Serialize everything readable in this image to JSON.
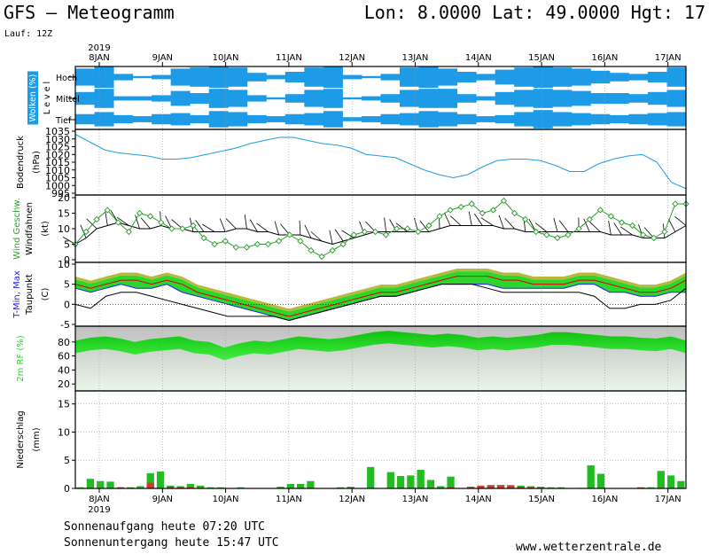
{
  "header": {
    "title": "GFS – Meteogramm",
    "location": "Lon: 8.0000 Lat: 49.0000 Hgt: 17",
    "run": "Lauf: 12Z"
  },
  "footer": {
    "sunrise": "Sonnenaufgang heute 07:20 UTC",
    "sunset": "Sonnenuntergang heute 15:47 UTC",
    "site": "www.wetterzentrale.de"
  },
  "colors": {
    "cloud": "#1e9be6",
    "pressure": "#1e9be6",
    "wind": "#2ca02c",
    "tmin": "#2020ff",
    "tmax": "#e00000",
    "rh": "#22dd22",
    "rain_green": "#22bb22",
    "rain_red": "#d23b2c"
  },
  "chart_data": {
    "type": "meteogram",
    "x_axis": {
      "year": "2019",
      "days": [
        "8JAN",
        "9JAN",
        "10JAN",
        "11JAN",
        "12JAN",
        "13JAN",
        "14JAN",
        "15JAN",
        "16JAN",
        "17JAN"
      ]
    },
    "panels": {
      "clouds": {
        "ylabel": "Wolken (%)",
        "ylabel2": "L e v e l",
        "levels": [
          "Hoch",
          "Mittel",
          "Tief"
        ],
        "coverage": {
          "hoch": [
            0.8,
            1,
            0.3,
            0.1,
            0.2,
            0.8,
            0.9,
            1,
            0.9,
            0.4,
            0.2,
            0.5,
            0.9,
            1,
            0.2,
            0.1,
            0.3,
            0.9,
            1,
            0.8,
            0.5,
            0.3,
            0.7,
            0.9,
            1,
            0.9,
            0.8,
            0.6,
            0.4,
            0.3,
            0.5,
            0.9
          ],
          "mittel": [
            0.6,
            0.9,
            0.2,
            0.2,
            0.3,
            0.7,
            0.5,
            0.9,
            0.8,
            0.3,
            0.1,
            0.4,
            0.8,
            0.9,
            0.1,
            0.2,
            0.4,
            0.8,
            0.9,
            0.9,
            0.4,
            0.2,
            0.6,
            0.8,
            0.9,
            0.8,
            0.7,
            0.5,
            0.5,
            0.4,
            0.6,
            0.8
          ],
          "tief": [
            0.5,
            0.7,
            0.4,
            0.3,
            0.5,
            0.6,
            0.4,
            0.8,
            0.7,
            0.4,
            0.3,
            0.5,
            0.6,
            0.8,
            0.2,
            0.3,
            0.5,
            0.6,
            0.8,
            0.7,
            0.5,
            0.3,
            0.4,
            0.7,
            0.9,
            0.7,
            0.6,
            0.5,
            0.4,
            0.5,
            0.6,
            0.7
          ]
        }
      },
      "pressure": {
        "ylabel": "Bodendruck",
        "unit": "(hPa)",
        "ylim": [
          995,
          1035
        ],
        "ticks": [
          995,
          1000,
          1005,
          1010,
          1015,
          1020,
          1025,
          1030,
          1035
        ],
        "values": [
          1033,
          1028,
          1023,
          1021,
          1020,
          1019,
          1017,
          1017,
          1018,
          1020,
          1022,
          1024,
          1027,
          1029,
          1031,
          1031,
          1029,
          1027,
          1026,
          1024,
          1020,
          1019,
          1018,
          1014,
          1010,
          1007,
          1005,
          1007,
          1012,
          1016,
          1017,
          1017,
          1016,
          1013,
          1009,
          1009,
          1014,
          1017,
          1019,
          1020,
          1015,
          1002,
          998
        ]
      },
      "wind": {
        "ylabel": "Wind Geschw.",
        "ylabel2": "Windfahnen",
        "unit": "(kt)",
        "ylim": [
          0,
          20
        ],
        "ticks": [
          0,
          5,
          10,
          15,
          20
        ],
        "speed_green": [
          5,
          9,
          13,
          16,
          12,
          9,
          15,
          14,
          12,
          10,
          10,
          11,
          7,
          5,
          6,
          4,
          4,
          5,
          5,
          6,
          8,
          6,
          3,
          1,
          3,
          5,
          8,
          9,
          9,
          8,
          10,
          10,
          9,
          11,
          14,
          16,
          17,
          18,
          15,
          16,
          19,
          15,
          13,
          9,
          8,
          7,
          8,
          10,
          13,
          16,
          14,
          12,
          11,
          8,
          7,
          9,
          18,
          18
        ],
        "speed_black": [
          5,
          7,
          10,
          11,
          12,
          11,
          10,
          10,
          11,
          10,
          10,
          9,
          9,
          9,
          9,
          10,
          10,
          9,
          9,
          8,
          8,
          8,
          7,
          6,
          5,
          6,
          7,
          8,
          9,
          9,
          9,
          9,
          9,
          9,
          10,
          11,
          11,
          11,
          11,
          11,
          10,
          10,
          9,
          9,
          9,
          9,
          9,
          9,
          9,
          9,
          8,
          8,
          8,
          7,
          7,
          7,
          9,
          11
        ]
      },
      "temperature": {
        "ylabel": "T-Min, Max",
        "ylabel2": "Taupunkt",
        "unit": "(C)",
        "ylim": [
          -5,
          10
        ],
        "ticks": [
          -5,
          0,
          5,
          10
        ],
        "tmax": [
          5,
          4,
          5,
          6,
          6,
          5,
          6,
          5,
          3,
          2,
          1,
          0,
          -1,
          -2,
          -3,
          -2,
          -1,
          0,
          1,
          2,
          3,
          3,
          4,
          5,
          6,
          7,
          7,
          7,
          6,
          6,
          5,
          5,
          5,
          6,
          6,
          5,
          4,
          3,
          3,
          4,
          6
        ],
        "tmin": [
          4,
          3,
          4,
          5,
          4,
          4,
          5,
          3,
          2,
          1,
          0,
          -1,
          -2,
          -3,
          -4,
          -3,
          -2,
          -1,
          0,
          1,
          2,
          2,
          3,
          4,
          5,
          5,
          5,
          5,
          4,
          4,
          4,
          4,
          4,
          5,
          5,
          3,
          3,
          2,
          2,
          3,
          3
        ],
        "dew": [
          0,
          -1,
          2,
          3,
          3,
          2,
          1,
          0,
          -1,
          -2,
          -3,
          -3,
          -3,
          -3,
          -4,
          -3,
          -2,
          -1,
          0,
          1,
          2,
          2,
          3,
          4,
          5,
          5,
          5,
          4,
          3,
          3,
          3,
          3,
          3,
          3,
          2,
          -1,
          -1,
          0,
          0,
          1,
          4
        ]
      },
      "rh": {
        "ylabel": "2m RF (%)",
        "ylim": [
          0,
          100
        ],
        "ticks": [
          20,
          40,
          60,
          80
        ],
        "values": [
          82,
          86,
          88,
          85,
          80,
          84,
          86,
          88,
          82,
          80,
          72,
          78,
          82,
          80,
          84,
          88,
          86,
          84,
          86,
          90,
          94,
          96,
          94,
          92,
          90,
          92,
          90,
          86,
          88,
          86,
          88,
          90,
          94,
          94,
          92,
          90,
          88,
          88,
          86,
          85,
          88,
          82
        ]
      },
      "precip": {
        "ylabel": "Niederschlag",
        "unit": "(mm)",
        "ylim": [
          0,
          17
        ],
        "ticks": [
          0,
          5,
          10,
          15
        ],
        "green": [
          0.2,
          1.7,
          1.3,
          1.2,
          0.2,
          0.2,
          0.4,
          2.7,
          3.0,
          0.5,
          0.4,
          0.8,
          0.5,
          0.2,
          0.2,
          0,
          0.2,
          0,
          0,
          0,
          0.3,
          0.8,
          0.8,
          1.3,
          0,
          0,
          0.2,
          0.3,
          0,
          3.8,
          0,
          2.9,
          2.2,
          2.3,
          3.3,
          1.5,
          0.4,
          2.1,
          0,
          0,
          0.2,
          0.5,
          0.6,
          0.6,
          0.5,
          0.4,
          0.3,
          0.2,
          0.2,
          0,
          0.1,
          4.1,
          2.6,
          0,
          0,
          0,
          0.1,
          0.2,
          3.1,
          2.3,
          1.3
        ],
        "red": [
          0,
          0,
          0,
          0,
          0.2,
          0,
          0,
          1.0,
          0,
          0.3,
          0.2,
          0.2,
          0.1,
          0,
          0,
          0,
          0,
          0,
          0,
          0,
          0,
          0,
          0,
          0,
          0,
          0,
          0,
          0,
          0,
          0,
          0,
          0,
          0,
          0,
          0,
          0,
          0,
          0.2,
          0,
          0.3,
          0.5,
          0.6,
          0.6,
          0.5,
          0.3,
          0.2,
          0.1,
          0,
          0,
          0,
          0,
          0,
          0,
          0,
          0,
          0,
          0.2,
          0,
          0,
          0,
          0
        ]
      }
    }
  }
}
